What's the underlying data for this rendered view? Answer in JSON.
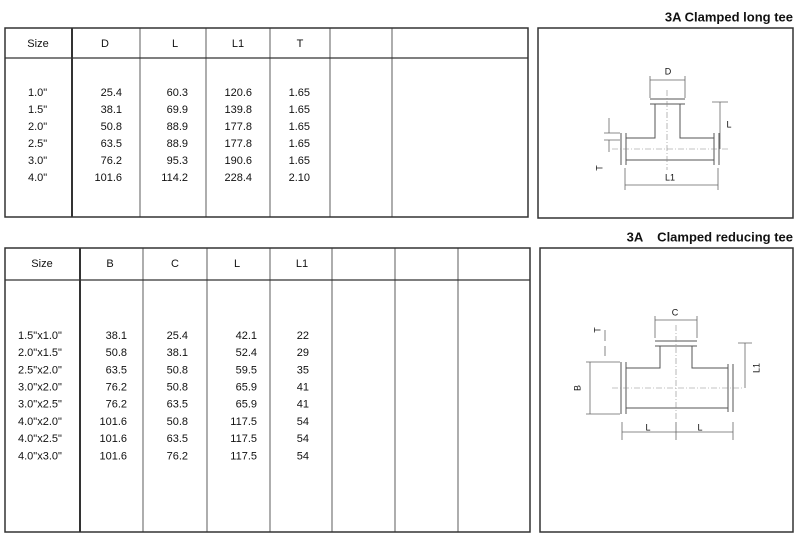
{
  "sections": [
    {
      "title": "3A Clamped long tee",
      "table": {
        "header": [
          "Size",
          "D",
          "L",
          "L1",
          "T"
        ],
        "rows": [
          [
            "1.0\"",
            "25.4",
            "60.3",
            "120.6",
            "1.65"
          ],
          [
            "1.5\"",
            "38.1",
            "69.9",
            "139.8",
            "1.65"
          ],
          [
            "2.0\"",
            "50.8",
            "88.9",
            "177.8",
            "1.65"
          ],
          [
            "2.5\"",
            "63.5",
            "88.9",
            "177.8",
            "1.65"
          ],
          [
            "3.0\"",
            "76.2",
            "95.3",
            "190.6",
            "1.65"
          ],
          [
            "4.0\"",
            "101.6",
            "114.2",
            "228.4",
            "2.10"
          ]
        ]
      },
      "diagram": {
        "labels": [
          "D",
          "L",
          "L1",
          "T"
        ]
      }
    },
    {
      "title": "3A    Clamped reducing tee",
      "table": {
        "header": [
          "Size",
          "B",
          "C",
          "L",
          "L1"
        ],
        "rows": [
          [
            "1.5\"x1.0\"",
            "38.1",
            "25.4",
            "42.1",
            "22"
          ],
          [
            "2.0\"x1.5\"",
            "50.8",
            "38.1",
            "52.4",
            "29"
          ],
          [
            "2.5\"x2.0\"",
            "63.5",
            "50.8",
            "59.5",
            "35"
          ],
          [
            "3.0\"x2.0\"",
            "76.2",
            "50.8",
            "65.9",
            "41"
          ],
          [
            "3.0\"x2.5\"",
            "76.2",
            "63.5",
            "65.9",
            "41"
          ],
          [
            "4.0\"x2.0\"",
            "101.6",
            "50.8",
            "117.5",
            "54"
          ],
          [
            "4.0\"x2.5\"",
            "101.6",
            "63.5",
            "117.5",
            "54"
          ],
          [
            "4.0\"x3.0\"",
            "101.6",
            "76.2",
            "117.5",
            "54"
          ]
        ]
      },
      "diagram": {
        "labels": [
          "C",
          "T",
          "L1",
          "B",
          "L",
          "L"
        ]
      }
    }
  ]
}
